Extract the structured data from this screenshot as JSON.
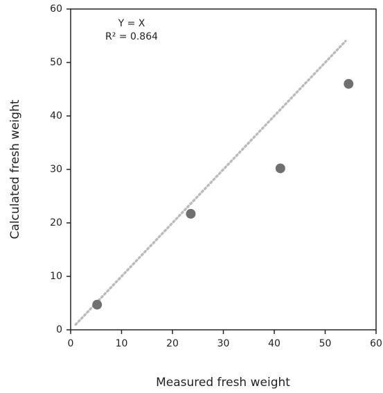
{
  "chart_data": {
    "type": "scatter",
    "x_label": "Measured fresh weight",
    "y_label": "Calculated fresh weight",
    "annotations": [
      "Y = X",
      "R² = 0.864"
    ],
    "x": [
      5.2,
      23.6,
      41.2,
      54.6
    ],
    "values": [
      4.7,
      21.7,
      30.2,
      46.0
    ],
    "color": "#707070",
    "reference_line": {
      "x": [
        1,
        54
      ],
      "y": [
        1,
        54
      ],
      "color": "#bbbbbb"
    },
    "xlim": [
      0,
      60
    ],
    "xticks": [
      0,
      10,
      20,
      30,
      40,
      50,
      60
    ],
    "ylim": [
      0,
      60
    ],
    "yticks": [
      0,
      10,
      20,
      30,
      40,
      50,
      60
    ]
  }
}
